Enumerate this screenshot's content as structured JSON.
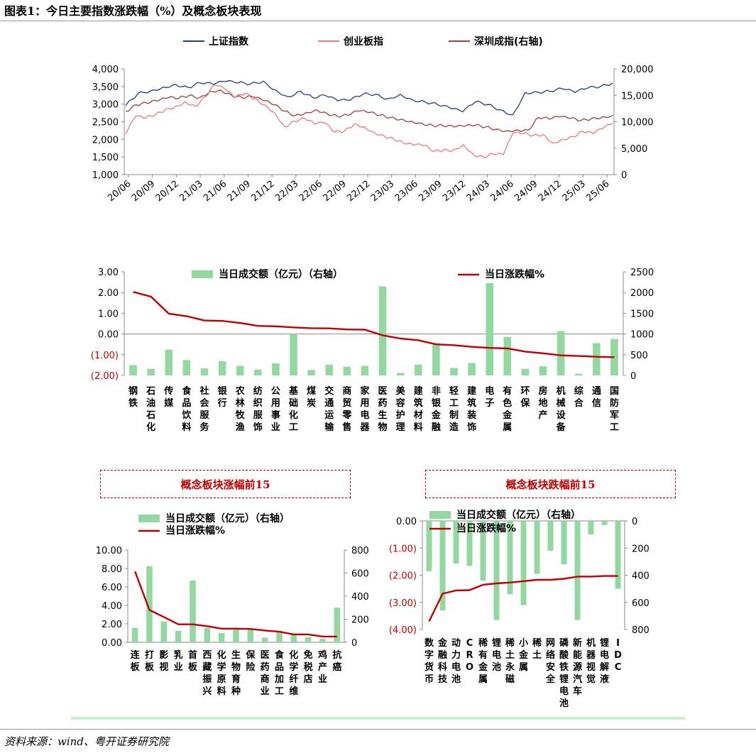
{
  "figure_title": "图表1：今日主要指数涨跌幅（%）及概念板块表现",
  "source": "资料来源：wind、粤开证券研究院",
  "colors": {
    "sh_index": "#1f3f7f",
    "cyb_index": "#f07878",
    "sz_index": "#a0403a",
    "bar_green": "#92d8a0",
    "line_red": "#c00000",
    "panel_top_bg": "#fde9e9",
    "panel_bottom_bg": "#cfe9cf",
    "neg_label": "#c00000"
  },
  "chart_data": [
    {
      "id": "index_trend",
      "type": "line",
      "title": "",
      "x_ticks": [
        "20/06",
        "20/09",
        "20/12",
        "21/03",
        "21/06",
        "21/09",
        "21/12",
        "22/03",
        "22/06",
        "22/09",
        "22/12",
        "23/03",
        "23/06",
        "23/09",
        "23/12",
        "24/03",
        "24/06",
        "24/09",
        "24/12",
        "25/03",
        "25/06"
      ],
      "y_left_ticks": [
        "4,000",
        "3,500",
        "3,000",
        "2,500",
        "2,000",
        "1,500",
        "1,000"
      ],
      "y_right_ticks": [
        "20,000",
        "15,000",
        "10,000",
        "5,000",
        "0"
      ],
      "ylim_left": [
        1000,
        4000
      ],
      "ylim_right": [
        0,
        20000
      ],
      "series": [
        {
          "name": "上证指数",
          "axis": "left",
          "color_key": "sh_index",
          "values": [
            2950,
            3310,
            3380,
            3480,
            3560,
            3470,
            3600,
            3560,
            3640,
            3600,
            3570,
            3650,
            3400,
            3210,
            3370,
            3180,
            3240,
            3090,
            3110,
            3280,
            3280,
            3150,
            3280,
            3120,
            3060,
            2980,
            2880,
            2780,
            3060,
            2990,
            2840,
            2700,
            3330,
            3340,
            3360,
            3430,
            3330,
            3450,
            3490,
            3600
          ]
        },
        {
          "name": "创业板指",
          "axis": "left",
          "color_key": "cyb_index",
          "values": [
            2150,
            2650,
            2600,
            2700,
            2850,
            2930,
            3070,
            2940,
            3200,
            3550,
            3420,
            3180,
            3300,
            3150,
            2980,
            2760,
            2360,
            2520,
            2590,
            2430,
            2470,
            2200,
            2230,
            2440,
            2360,
            2200,
            2100,
            2000,
            1880,
            1830,
            1830,
            1650,
            1700,
            1700,
            1850,
            1570,
            1500,
            1580,
            1560,
            2180,
            2160,
            2110,
            2140,
            1900,
            2010,
            2080,
            2220,
            2160,
            2300,
            2450
          ]
        },
        {
          "name": "深圳成指(右轴)",
          "axis": "right",
          "color_key": "sz_index",
          "values": [
            12000,
            13200,
            13500,
            13900,
            14500,
            14400,
            15000,
            14600,
            15800,
            16000,
            15000,
            14500,
            14700,
            14000,
            13200,
            12000,
            11200,
            11700,
            12300,
            11600,
            11000,
            11200,
            12000,
            11700,
            11200,
            10800,
            10500,
            10100,
            9700,
            9300,
            9200,
            9000,
            9100,
            9300,
            9000,
            8600,
            8300,
            8500,
            8400,
            10800,
            10500,
            10900,
            10600,
            10200,
            10600,
            10900,
            11200
          ]
        }
      ]
    },
    {
      "id": "industry",
      "type": "bar",
      "title": "",
      "categories": [
        "钢铁",
        "石油石化",
        "传媒",
        "食品饮料",
        "社会服务",
        "银行",
        "农林牧渔",
        "纺织服饰",
        "公用事业",
        "基础化工",
        "煤炭",
        "交通运输",
        "商贸零售",
        "家用电器",
        "医药生物",
        "美容护理",
        "建筑材料",
        "非银金融",
        "轻工制造",
        "建筑装饰",
        "电子",
        "有色金属",
        "环保",
        "房地产",
        "机械设备",
        "综合",
        "通信",
        "国防军工"
      ],
      "series": [
        {
          "name": "当日成交额（亿元）（右轴）",
          "kind": "bar",
          "axis": "right",
          "values": [
            250,
            160,
            620,
            370,
            170,
            340,
            230,
            140,
            290,
            1000,
            130,
            260,
            210,
            230,
            2150,
            60,
            260,
            780,
            180,
            300,
            2230,
            930,
            160,
            220,
            1070,
            40,
            780,
            880
          ]
        },
        {
          "name": "当日涨跌幅%",
          "kind": "line",
          "axis": "left",
          "values": [
            2.03,
            1.8,
            0.98,
            0.86,
            0.65,
            0.63,
            0.53,
            0.39,
            0.37,
            0.32,
            0.28,
            0.27,
            0.22,
            0.21,
            -0.06,
            -0.22,
            -0.3,
            -0.5,
            -0.54,
            -0.62,
            -0.67,
            -0.7,
            -0.85,
            -0.93,
            -1.03,
            -1.06,
            -1.1,
            -1.12
          ]
        }
      ],
      "y_left_ticks": [
        "3.00",
        "2.00",
        "1.00",
        "0.00",
        "(1.00)",
        "(2.00)"
      ],
      "y_right_ticks": [
        "2500",
        "2000",
        "1500",
        "1000",
        "500",
        "0"
      ],
      "ylim_left": [
        -2,
        3
      ],
      "ylim_right": [
        0,
        2500
      ]
    },
    {
      "id": "concept_top",
      "type": "bar",
      "title": "概念板块涨幅前15",
      "categories": [
        "连板",
        "打板",
        "影视",
        "乳业",
        "首板",
        "西藏振兴",
        "化学原料",
        "生物育种",
        "保险",
        "医药商业",
        "食品加工",
        "化学纤维",
        "免税店",
        "鸡产业",
        "抗癌"
      ],
      "series": [
        {
          "name": "当日成交额（亿元）（右轴）",
          "kind": "bar",
          "axis": "right",
          "values": [
            125,
            660,
            180,
            100,
            535,
            125,
            80,
            115,
            110,
            40,
            100,
            75,
            45,
            30,
            300
          ]
        },
        {
          "name": "当日涨跌幅%",
          "kind": "line",
          "axis": "left",
          "values": [
            7.68,
            3.5,
            2.75,
            1.95,
            1.95,
            1.75,
            1.48,
            1.48,
            1.45,
            1.28,
            1.15,
            0.85,
            0.85,
            0.62,
            0.62
          ]
        }
      ],
      "y_left_ticks": [
        "10.00",
        "8.00",
        "6.00",
        "4.00",
        "2.00",
        "0.00"
      ],
      "y_right_ticks": [
        "800",
        "600",
        "400",
        "200",
        "0"
      ],
      "ylim_left": [
        0,
        10
      ],
      "ylim_right": [
        0,
        800
      ]
    },
    {
      "id": "concept_bottom",
      "type": "bar",
      "title": "概念板块跌幅前15",
      "categories": [
        "数字货币",
        "金融科技",
        "动力电池",
        "CRO",
        "稀有金属",
        "锂电池",
        "稀土永磁",
        "小金属",
        "稀土",
        "网络安全",
        "磷酸铁锂电池",
        "新能源汽车",
        "机器视觉",
        "锂电解液",
        "IDC"
      ],
      "series": [
        {
          "name": "当日成交额（亿元）（右轴）",
          "kind": "bar",
          "axis": "right",
          "values": [
            370,
            660,
            315,
            330,
            440,
            730,
            540,
            620,
            390,
            220,
            320,
            730,
            100,
            30,
            500
          ]
        },
        {
          "name": "当日涨跌幅%",
          "kind": "line",
          "axis": "left",
          "values": [
            -3.7,
            -2.68,
            -2.56,
            -2.55,
            -2.35,
            -2.3,
            -2.27,
            -2.22,
            -2.17,
            -2.17,
            -2.13,
            -2.05,
            -2.05,
            -2.03,
            -2.03
          ]
        }
      ],
      "y_left_ticks": [
        "0.00",
        "(1.00)",
        "(2.00)",
        "(3.00)",
        "(4.00)"
      ],
      "y_right_ticks": [
        "0",
        "200",
        "400",
        "600",
        "800"
      ],
      "ylim_left": [
        -4,
        0
      ],
      "ylim_right": [
        0,
        800
      ]
    }
  ]
}
